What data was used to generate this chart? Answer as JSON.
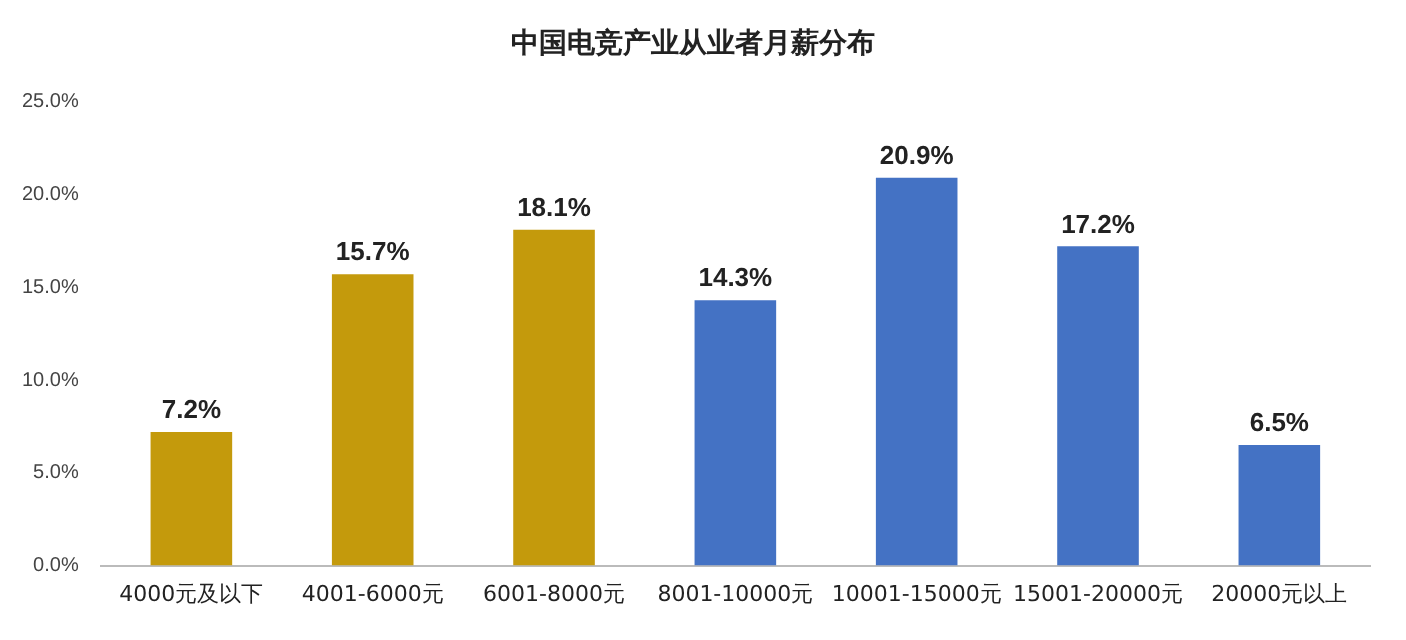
{
  "chart_data": {
    "type": "bar",
    "title": "中国电竞产业从业者月薪分布",
    "categories": [
      "4000元及以下",
      "4001-6000元",
      "6001-8000元",
      "8001-10000元",
      "10001-15000元",
      "15001-20000元",
      "20000元以上"
    ],
    "values": [
      7.2,
      15.7,
      18.1,
      14.3,
      20.9,
      17.2,
      6.5
    ],
    "value_labels": [
      "7.2%",
      "15.7%",
      "18.1%",
      "14.3%",
      "20.9%",
      "17.2%",
      "6.5%"
    ],
    "colors": [
      "#c49a0c",
      "#c49a0c",
      "#c49a0c",
      "#4472c4",
      "#4472c4",
      "#4472c4",
      "#4472c4"
    ],
    "ylim": [
      0,
      25
    ],
    "yticks": [
      {
        "value": 0,
        "label": "0.0%"
      },
      {
        "value": 5,
        "label": "5.0%"
      },
      {
        "value": 10,
        "label": "10.0%"
      },
      {
        "value": 15,
        "label": "15.0%"
      },
      {
        "value": 20,
        "label": "20.0%"
      },
      {
        "value": 25,
        "label": "25.0%"
      }
    ],
    "grid": false,
    "legend": false
  }
}
